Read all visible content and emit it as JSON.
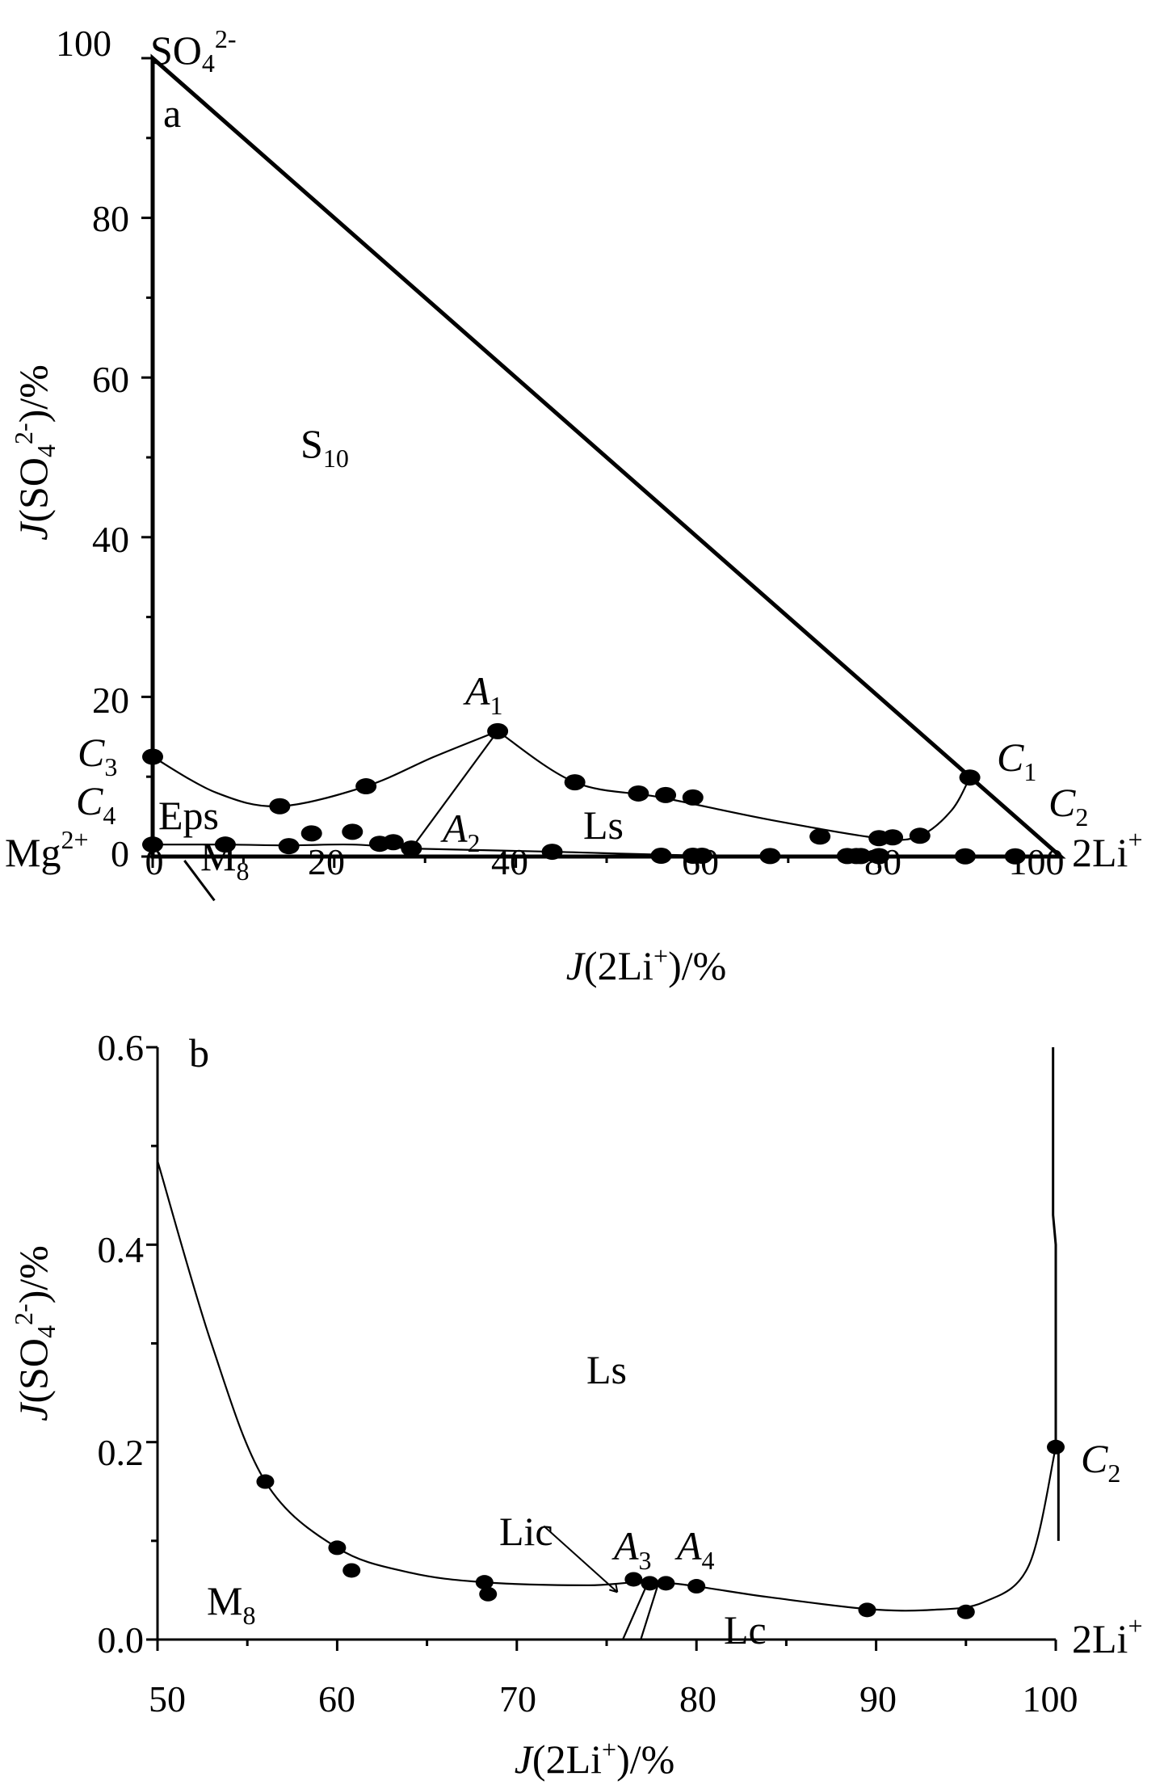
{
  "chart_data": [
    {
      "type": "scatter",
      "panel_label": "a",
      "xlabel": "J(2Li+)/%",
      "ylabel": "J(SO42-)/%",
      "xlim": [
        0,
        100
      ],
      "ylim": [
        0,
        100
      ],
      "xticks": [
        "0",
        "20",
        "40",
        "60",
        "80",
        "100"
      ],
      "yticks": [
        "0",
        "20",
        "40",
        "60",
        "80",
        "100"
      ],
      "corners": {
        "top": "SO42-",
        "left": "Mg2+",
        "right": "2Li+"
      },
      "regions": [
        "S10",
        "Eps",
        "Ls",
        "M8"
      ],
      "point_labels": [
        {
          "name": "A1",
          "x": 38,
          "y": 16.5
        },
        {
          "name": "A2",
          "x": 29,
          "y": 1
        },
        {
          "name": "C1",
          "x": 90,
          "y": 9.5
        },
        {
          "name": "C2",
          "x": 100,
          "y": 0.2
        },
        {
          "name": "C3",
          "x": 0,
          "y": 12.5
        },
        {
          "name": "C4",
          "x": 0,
          "y": 1.5
        }
      ],
      "points": [
        [
          0,
          12.5
        ],
        [
          14,
          6.3
        ],
        [
          23.5,
          8.8
        ],
        [
          38,
          15.7
        ],
        [
          46.5,
          9.3
        ],
        [
          53.5,
          7.9
        ],
        [
          56.5,
          7.7
        ],
        [
          59.5,
          7.4
        ],
        [
          73.5,
          2.5
        ],
        [
          80,
          2.3
        ],
        [
          81.5,
          2.4
        ],
        [
          84.5,
          2.6
        ],
        [
          90,
          9.9
        ],
        [
          0,
          1.5
        ],
        [
          8,
          1.5
        ],
        [
          15,
          1.3
        ],
        [
          17.5,
          2.9
        ],
        [
          22,
          3.1
        ],
        [
          25,
          1.6
        ],
        [
          26.5,
          1.8
        ],
        [
          28.5,
          1.0
        ],
        [
          44,
          0.6
        ],
        [
          56,
          0.1
        ],
        [
          59.5,
          0.1
        ],
        [
          60.5,
          0.1
        ],
        [
          68,
          0.06
        ],
        [
          76.5,
          0.06
        ],
        [
          77.5,
          0.06
        ],
        [
          78,
          0.06
        ],
        [
          80,
          0.05
        ],
        [
          89.5,
          0.03
        ],
        [
          95,
          0.03
        ]
      ]
    },
    {
      "type": "scatter",
      "panel_label": "b",
      "xlabel": "J(2Li+)/%",
      "ylabel": "J(SO42-)/%",
      "xlim": [
        50,
        100
      ],
      "ylim": [
        0,
        0.6
      ],
      "xticks": [
        "50",
        "60",
        "70",
        "80",
        "90",
        "100"
      ],
      "yticks": [
        "0.0",
        "0.2",
        "0.4",
        "0.6"
      ],
      "right_label": "2Li+",
      "regions": [
        "Ls",
        "M8",
        "Lc",
        "Lic"
      ],
      "point_labels": [
        {
          "name": "A3",
          "x": 77.2,
          "y": 0.058
        },
        {
          "name": "A4",
          "x": 78.3,
          "y": 0.057
        },
        {
          "name": "C2",
          "x": 100,
          "y": 0.195
        }
      ],
      "points": [
        [
          56,
          0.16
        ],
        [
          60,
          0.093
        ],
        [
          60.8,
          0.07
        ],
        [
          68.2,
          0.058
        ],
        [
          68.4,
          0.046
        ],
        [
          76.5,
          0.061
        ],
        [
          77.4,
          0.057
        ],
        [
          78.3,
          0.057
        ],
        [
          80,
          0.054
        ],
        [
          89.5,
          0.03
        ],
        [
          95,
          0.028
        ],
        [
          100,
          0.195
        ]
      ]
    }
  ]
}
